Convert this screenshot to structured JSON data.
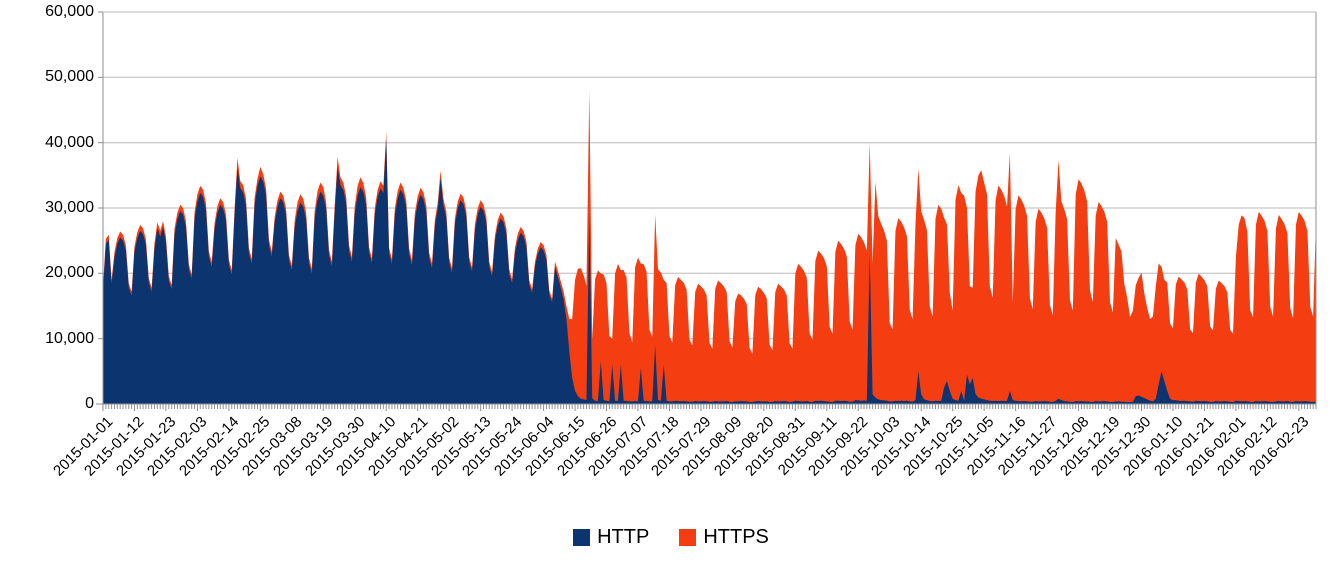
{
  "chart_data": {
    "type": "area",
    "stacked": true,
    "title": "",
    "xlabel": "",
    "ylabel": "",
    "x_start_date": "2015-01-01",
    "x_tick_interval_days": 11,
    "x_tick_labels": [
      "2015-01-01",
      "2015-01-12",
      "2015-01-23",
      "2015-02-03",
      "2015-02-14",
      "2015-02-25",
      "2015-03-08",
      "2015-03-19",
      "2015-03-30",
      "2015-04-10",
      "2015-04-21",
      "2015-05-02",
      "2015-05-13",
      "2015-05-24",
      "2015-06-04",
      "2015-06-15",
      "2015-06-26",
      "2015-07-07",
      "2015-07-18",
      "2015-07-29",
      "2015-08-09",
      "2015-08-20",
      "2015-08-31",
      "2015-09-11",
      "2015-09-22",
      "2015-10-03",
      "2015-10-14",
      "2015-10-25",
      "2015-11-05",
      "2015-11-16",
      "2015-11-27",
      "2015-12-08",
      "2015-12-19",
      "2015-12-30",
      "2016-01-10",
      "2016-01-21",
      "2016-02-01",
      "2016-02-12",
      "2016-02-23"
    ],
    "y_ticks": [
      0,
      10000,
      20000,
      30000,
      40000,
      50000,
      60000
    ],
    "y_tick_labels": [
      "0",
      "10,000",
      "20,000",
      "30,000",
      "40,000",
      "50,000",
      "60,000"
    ],
    "ylim": [
      0,
      60000
    ],
    "grid": "horizontal-only",
    "grid_color": "#b8b8b8",
    "axis_color": "#8f8f8f",
    "legend_position": "bottom",
    "series": [
      {
        "name": "HTTP",
        "color": "#0c3570",
        "values": [
          17500,
          24500,
          25100,
          18400,
          22400,
          24500,
          25500,
          25000,
          23500,
          17900,
          16600,
          23300,
          25400,
          26500,
          26000,
          24400,
          18600,
          17200,
          23800,
          26900,
          25600,
          27100,
          24800,
          18900,
          17600,
          26000,
          28300,
          29500,
          29000,
          27100,
          20700,
          19200,
          28400,
          31000,
          32300,
          31700,
          29700,
          22600,
          21000,
          26800,
          29300,
          30500,
          29900,
          28100,
          21400,
          19800,
          29000,
          36200,
          33000,
          32400,
          30400,
          23100,
          21500,
          30600,
          33400,
          34800,
          34100,
          32000,
          24400,
          22600,
          27700,
          30200,
          31500,
          30900,
          29000,
          22100,
          20500,
          27100,
          29600,
          30800,
          30200,
          28300,
          21600,
          20000,
          28600,
          31200,
          32500,
          31900,
          29900,
          22800,
          21100,
          29500,
          36300,
          33500,
          32800,
          30800,
          23500,
          21800,
          29200,
          31900,
          33200,
          32500,
          30500,
          23200,
          21600,
          29000,
          31700,
          33000,
          32300,
          40600,
          23100,
          21500,
          28900,
          31500,
          32800,
          32100,
          30200,
          23000,
          21300,
          28200,
          30700,
          32000,
          31400,
          29400,
          22400,
          20800,
          27300,
          29800,
          34600,
          30400,
          28600,
          21700,
          20100,
          27500,
          30000,
          31200,
          30600,
          28700,
          21800,
          20300,
          26600,
          29000,
          30200,
          29600,
          27800,
          21100,
          19600,
          25000,
          27300,
          28400,
          27800,
          26100,
          19900,
          18500,
          23100,
          25200,
          26200,
          25700,
          24100,
          18300,
          17000,
          21100,
          23000,
          24000,
          23500,
          22100,
          16800,
          15600,
          21000,
          19500,
          17800,
          16000,
          13000,
          8000,
          4000,
          2000,
          1200,
          800,
          700,
          600,
          29000,
          900,
          500,
          450,
          6500,
          600,
          500,
          400,
          6000,
          500,
          450,
          6000,
          500,
          450,
          400,
          400,
          450,
          400,
          5500,
          500,
          450,
          400,
          400,
          9000,
          600,
          500,
          6000,
          500,
          400,
          400,
          500,
          450,
          400,
          450,
          400,
          350,
          350,
          450,
          400,
          400,
          450,
          400,
          350,
          350,
          450,
          400,
          400,
          400,
          450,
          350,
          300,
          400,
          400,
          450,
          400,
          400,
          300,
          300,
          400,
          450,
          400,
          400,
          400,
          300,
          300,
          450,
          400,
          400,
          450,
          400,
          300,
          350,
          500,
          450,
          400,
          400,
          450,
          350,
          300,
          500,
          450,
          500,
          450,
          400,
          350,
          300,
          500,
          500,
          450,
          500,
          450,
          350,
          350,
          600,
          550,
          500,
          550,
          500,
          23000,
          1500,
          1000,
          700,
          600,
          550,
          500,
          400,
          400,
          500,
          450,
          500,
          450,
          500,
          400,
          350,
          600,
          5000,
          1500,
          700,
          600,
          450,
          400,
          500,
          450,
          500,
          2500,
          3500,
          2000,
          800,
          600,
          500,
          2000,
          500,
          4500,
          3000,
          4000,
          1500,
          1000,
          800,
          700,
          600,
          500,
          450,
          500,
          450,
          500,
          450,
          500,
          2000,
          600,
          500,
          450,
          400,
          450,
          400,
          350,
          350,
          450,
          400,
          400,
          450,
          400,
          350,
          300,
          500,
          800,
          600,
          450,
          400,
          350,
          300,
          450,
          400,
          450,
          400,
          400,
          350,
          300,
          450,
          400,
          400,
          450,
          400,
          300,
          300,
          400,
          400,
          350,
          350,
          300,
          300,
          300,
          1200,
          1300,
          1100,
          900,
          700,
          500,
          400,
          800,
          3000,
          5000,
          3500,
          2000,
          800,
          600,
          600,
          500,
          450,
          500,
          450,
          400,
          350,
          500,
          450,
          400,
          450,
          400,
          350,
          300,
          450,
          400,
          400,
          450,
          400,
          350,
          300,
          500,
          450,
          400,
          450,
          400,
          350,
          300,
          450,
          400,
          400,
          450,
          400,
          350,
          300,
          400,
          450,
          400,
          400,
          450,
          350,
          300,
          450,
          400,
          400,
          450,
          400,
          350,
          300,
          400
        ]
      },
      {
        "name": "HTTPS",
        "color": "#f43d10",
        "values": [
          500,
          800,
          800,
          600,
          800,
          900,
          900,
          900,
          800,
          600,
          600,
          800,
          900,
          900,
          900,
          800,
          700,
          600,
          800,
          900,
          900,
          900,
          800,
          700,
          600,
          900,
          1000,
          1000,
          1000,
          900,
          700,
          600,
          1000,
          1100,
          1100,
          1100,
          1000,
          800,
          700,
          900,
          1000,
          1000,
          1000,
          900,
          700,
          700,
          1000,
          1500,
          1100,
          1100,
          1000,
          800,
          700,
          1000,
          1100,
          1500,
          1100,
          1000,
          800,
          700,
          900,
          1000,
          1000,
          1000,
          900,
          700,
          700,
          1000,
          1300,
          1300,
          1200,
          1000,
          800,
          700,
          1000,
          1400,
          1400,
          1300,
          1000,
          800,
          700,
          1000,
          1500,
          1200,
          1100,
          1000,
          800,
          700,
          1100,
          1500,
          1500,
          1300,
          1100,
          800,
          700,
          1000,
          1100,
          1100,
          1100,
          1000,
          800,
          700,
          1000,
          1100,
          1100,
          1000,
          1000,
          800,
          700,
          1000,
          1100,
          1100,
          1000,
          1000,
          800,
          700,
          900,
          1000,
          1100,
          1000,
          900,
          700,
          700,
          900,
          1000,
          1000,
          1000,
          900,
          700,
          600,
          900,
          1000,
          1000,
          900,
          900,
          700,
          600,
          800,
          900,
          900,
          900,
          800,
          700,
          600,
          800,
          900,
          900,
          800,
          800,
          600,
          600,
          700,
          800,
          800,
          800,
          700,
          600,
          500,
          800,
          900,
          1000,
          1200,
          2000,
          5000,
          9000,
          17000,
          19500,
          20000,
          19000,
          17500,
          19000,
          9000,
          18600,
          20000,
          13500,
          19200,
          18000,
          10000,
          4000,
          19500,
          21000,
          14500,
          20000,
          18900,
          10500,
          9000,
          20500,
          22000,
          16000,
          20900,
          19800,
          11000,
          9900,
          20000,
          20000,
          19600,
          13000,
          18000,
          10000,
          9000,
          17700,
          19000,
          18600,
          18100,
          17100,
          9500,
          8600,
          16700,
          18000,
          17600,
          17100,
          16200,
          9000,
          8100,
          17200,
          18500,
          18100,
          17600,
          16700,
          9300,
          8300,
          15300,
          16500,
          16200,
          15700,
          14900,
          8300,
          7400,
          16300,
          17500,
          17200,
          16600,
          15800,
          8800,
          7900,
          16700,
          18000,
          17600,
          17100,
          16200,
          9000,
          8100,
          19500,
          21000,
          20600,
          20000,
          18900,
          10500,
          9500,
          21400,
          23000,
          22500,
          21900,
          20700,
          11500,
          10400,
          22800,
          24500,
          24000,
          23300,
          22100,
          12300,
          11000,
          23700,
          25500,
          25000,
          24200,
          23000,
          17000,
          20000,
          33000,
          28000,
          27000,
          26000,
          24500,
          12000,
          11000,
          26000,
          28000,
          27400,
          26600,
          25200,
          14000,
          12600,
          27000,
          31000,
          28000,
          27500,
          26000,
          14500,
          13000,
          27900,
          30000,
          29400,
          26000,
          24000,
          15000,
          13500,
          30700,
          33000,
          30300,
          31400,
          25500,
          15000,
          13800,
          31000,
          34000,
          35000,
          33200,
          31500,
          17500,
          15800,
          30700,
          33000,
          32300,
          31400,
          29700,
          36500,
          14900,
          29300,
          31500,
          30900,
          29900,
          28400,
          15800,
          14200,
          27400,
          29500,
          28900,
          28000,
          26600,
          14800,
          13300,
          28800,
          36500,
          30400,
          29400,
          27900,
          15500,
          14000,
          31600,
          34000,
          33300,
          32300,
          30600,
          17000,
          15300,
          28400,
          30500,
          29900,
          29000,
          27500,
          15300,
          13700,
          25000,
          24000,
          23000,
          18000,
          16000,
          13000,
          14000,
          17000,
          18000,
          19000,
          16000,
          14000,
          12500,
          13000,
          17200,
          18500,
          16000,
          15500,
          16600,
          11500,
          11000,
          17700,
          19000,
          18600,
          18100,
          17100,
          11000,
          10500,
          18100,
          19500,
          19100,
          18500,
          17600,
          11500,
          11000,
          17200,
          18500,
          18100,
          17600,
          16700,
          11000,
          10500,
          22000,
          27000,
          28500,
          28000,
          26000,
          14000,
          13000,
          27000,
          29000,
          28400,
          27600,
          26100,
          14500,
          13100,
          26500,
          28500,
          27900,
          27100,
          25700,
          14300,
          12800,
          27000,
          29000,
          28400,
          27600,
          26100,
          14500,
          13100,
          27500
        ]
      }
    ]
  },
  "legend": {
    "items": [
      {
        "label": "HTTP",
        "color": "#0c3570"
      },
      {
        "label": "HTTPS",
        "color": "#f43d10"
      }
    ]
  }
}
